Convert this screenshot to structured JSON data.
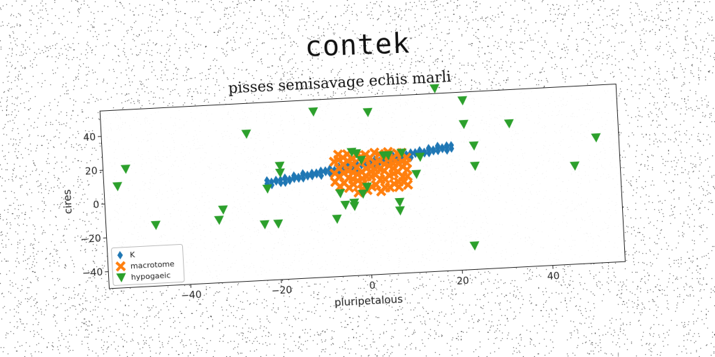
{
  "title": "contek",
  "chart_data": {
    "type": "scatter",
    "subtitle": "pisses semisavage echis marli",
    "xlabel": "pluripetalous",
    "ylabel": "cires",
    "xlim": [
      -58,
      56
    ],
    "ylim": [
      -50,
      55
    ],
    "xticks": [
      -40,
      -20,
      0,
      20,
      40
    ],
    "yticks": [
      -40,
      -20,
      0,
      20,
      40
    ],
    "grid": false,
    "legend": "lower-left",
    "series": [
      {
        "name": "K",
        "marker": "diamond",
        "color": "#1f77b4",
        "points": [
          [
            -22,
            7
          ],
          [
            -21,
            8
          ],
          [
            -20,
            8
          ],
          [
            -19,
            9
          ],
          [
            -18,
            9
          ],
          [
            -17,
            9
          ],
          [
            -16,
            10
          ],
          [
            -15,
            10
          ],
          [
            -14,
            11
          ],
          [
            -13,
            11
          ],
          [
            -12,
            11
          ],
          [
            -11,
            12
          ],
          [
            -10,
            12
          ],
          [
            -9,
            13
          ],
          [
            -8,
            13
          ],
          [
            -7,
            13
          ],
          [
            -6,
            14
          ],
          [
            -5,
            14
          ],
          [
            -4,
            15
          ],
          [
            -3,
            15
          ],
          [
            -2,
            15
          ],
          [
            -1,
            16
          ],
          [
            0,
            16
          ],
          [
            1,
            17
          ],
          [
            2,
            17
          ],
          [
            3,
            17
          ],
          [
            4,
            18
          ],
          [
            5,
            18
          ],
          [
            6,
            19
          ],
          [
            7,
            19
          ],
          [
            8,
            19
          ],
          [
            9,
            20
          ],
          [
            10,
            20
          ],
          [
            11,
            21
          ],
          [
            12,
            21
          ],
          [
            13,
            21
          ],
          [
            14,
            22
          ],
          [
            15,
            22
          ],
          [
            16,
            23
          ],
          [
            17,
            23
          ],
          [
            18,
            23
          ],
          [
            19,
            24
          ],
          [
            -21,
            6
          ],
          [
            -19,
            7
          ],
          [
            -17,
            8
          ],
          [
            -15,
            9
          ],
          [
            -13,
            10
          ],
          [
            -11,
            11
          ],
          [
            -9,
            12
          ],
          [
            -7,
            12
          ],
          [
            -5,
            13
          ],
          [
            -3,
            14
          ],
          [
            -1,
            15
          ],
          [
            1,
            15
          ],
          [
            3,
            16
          ],
          [
            5,
            17
          ],
          [
            7,
            18
          ],
          [
            9,
            19
          ],
          [
            11,
            20
          ],
          [
            13,
            20
          ],
          [
            15,
            21
          ],
          [
            17,
            22
          ],
          [
            19,
            22
          ],
          [
            -20,
            9
          ],
          [
            -18,
            10
          ],
          [
            -16,
            11
          ],
          [
            -14,
            12
          ],
          [
            -12,
            12
          ],
          [
            -10,
            13
          ],
          [
            -8,
            14
          ],
          [
            -6,
            15
          ],
          [
            -4,
            16
          ],
          [
            -2,
            16
          ],
          [
            0,
            17
          ],
          [
            2,
            18
          ],
          [
            4,
            19
          ],
          [
            6,
            20
          ],
          [
            8,
            20
          ],
          [
            10,
            21
          ],
          [
            12,
            22
          ],
          [
            14,
            23
          ],
          [
            16,
            24
          ],
          [
            18,
            24
          ],
          [
            -22,
            9
          ],
          [
            -18,
            7
          ],
          [
            -14,
            9
          ],
          [
            -10,
            10
          ],
          [
            -6,
            12
          ],
          [
            -2,
            13
          ],
          [
            2,
            15
          ],
          [
            6,
            17
          ],
          [
            10,
            18
          ],
          [
            14,
            20
          ],
          [
            18,
            21
          ],
          [
            -16,
            9
          ],
          [
            -12,
            10
          ],
          [
            -8,
            11
          ],
          [
            -4,
            13
          ],
          [
            0,
            14
          ],
          [
            4,
            16
          ],
          [
            8,
            17
          ],
          [
            12,
            19
          ],
          [
            16,
            21
          ]
        ]
      },
      {
        "name": "macrotome",
        "marker": "x",
        "color": "#ff7f0e",
        "points": [
          [
            -7,
            18
          ],
          [
            -6,
            14
          ],
          [
            -6,
            9
          ],
          [
            -5,
            5
          ],
          [
            -5,
            20
          ],
          [
            -4,
            12
          ],
          [
            -4,
            2
          ],
          [
            -3,
            16
          ],
          [
            -3,
            7
          ],
          [
            -2,
            -1
          ],
          [
            -2,
            21
          ],
          [
            -1,
            11
          ],
          [
            -1,
            4
          ],
          [
            0,
            18
          ],
          [
            0,
            0
          ],
          [
            1,
            14
          ],
          [
            1,
            8
          ],
          [
            2,
            22
          ],
          [
            2,
            3
          ],
          [
            3,
            17
          ],
          [
            3,
            -1
          ],
          [
            4,
            11
          ],
          [
            4,
            6
          ],
          [
            5,
            20
          ],
          [
            5,
            1
          ],
          [
            6,
            15
          ],
          [
            6,
            9
          ],
          [
            7,
            21
          ],
          [
            7,
            4
          ],
          [
            8,
            13
          ],
          [
            8,
            7
          ],
          [
            9,
            18
          ],
          [
            9,
            2
          ],
          [
            -7,
            6
          ],
          [
            -6,
            19
          ],
          [
            -5,
            11
          ],
          [
            -4,
            22
          ],
          [
            -3,
            4
          ],
          [
            -2,
            14
          ],
          [
            -1,
            20
          ],
          [
            0,
            8
          ],
          [
            1,
            2
          ],
          [
            2,
            12
          ],
          [
            3,
            6
          ],
          [
            4,
            20
          ],
          [
            5,
            14
          ],
          [
            6,
            3
          ],
          [
            7,
            10
          ],
          [
            8,
            21
          ],
          [
            9,
            11
          ],
          [
            -6,
            3
          ],
          [
            -4,
            8
          ],
          [
            -2,
            6
          ],
          [
            0,
            21
          ],
          [
            2,
            16
          ],
          [
            4,
            1
          ],
          [
            6,
            12
          ],
          [
            8,
            16
          ],
          [
            -5,
            16
          ],
          [
            -3,
            11
          ],
          [
            -1,
            1
          ],
          [
            1,
            19
          ],
          [
            3,
            12
          ],
          [
            5,
            8
          ],
          [
            7,
            15
          ],
          [
            9,
            7
          ],
          [
            -7,
            11
          ],
          [
            -1,
            7
          ],
          [
            5,
            22
          ],
          [
            8,
            4
          ],
          [
            -4,
            18
          ],
          [
            2,
            9
          ],
          [
            6,
            18
          ],
          [
            0,
            13
          ],
          [
            -2,
            10
          ],
          [
            4,
            15
          ],
          [
            3,
            21
          ],
          [
            -6,
            22
          ],
          [
            7,
            1
          ],
          [
            -3,
            19
          ],
          [
            1,
            11
          ],
          [
            9,
            15
          ]
        ]
      },
      {
        "name": "hypogaeic",
        "marker": "triangle-down",
        "color": "#2ca02c",
        "points": [
          [
            -53,
            20
          ],
          [
            -55,
            10
          ],
          [
            -47,
            -14
          ],
          [
            -32,
            -7
          ],
          [
            -33,
            -13
          ],
          [
            -26,
            37
          ],
          [
            -22,
            4
          ],
          [
            -23,
            -17
          ],
          [
            -20,
            -17
          ],
          [
            -19,
            17
          ],
          [
            -19,
            13
          ],
          [
            -11,
            48
          ],
          [
            -7,
            -16
          ],
          [
            -6,
            -1
          ],
          [
            -3,
            23
          ],
          [
            -5,
            -8
          ],
          [
            -3,
            -9
          ],
          [
            -3,
            -7
          ],
          [
            -2,
            22
          ],
          [
            -1,
            18
          ],
          [
            -1,
            -2
          ],
          [
            0,
            2
          ],
          [
            1,
            46
          ],
          [
            4,
            20
          ],
          [
            5,
            20
          ],
          [
            7,
            -8
          ],
          [
            7,
            -13
          ],
          [
            8,
            21
          ],
          [
            11,
            8
          ],
          [
            12,
            18
          ],
          [
            16,
            58
          ],
          [
            22,
            50
          ],
          [
            22,
            36
          ],
          [
            24,
            23
          ],
          [
            24,
            11
          ],
          [
            23,
            -36
          ],
          [
            32,
            35
          ],
          [
            46,
            8
          ],
          [
            51,
            24
          ]
        ]
      }
    ]
  }
}
